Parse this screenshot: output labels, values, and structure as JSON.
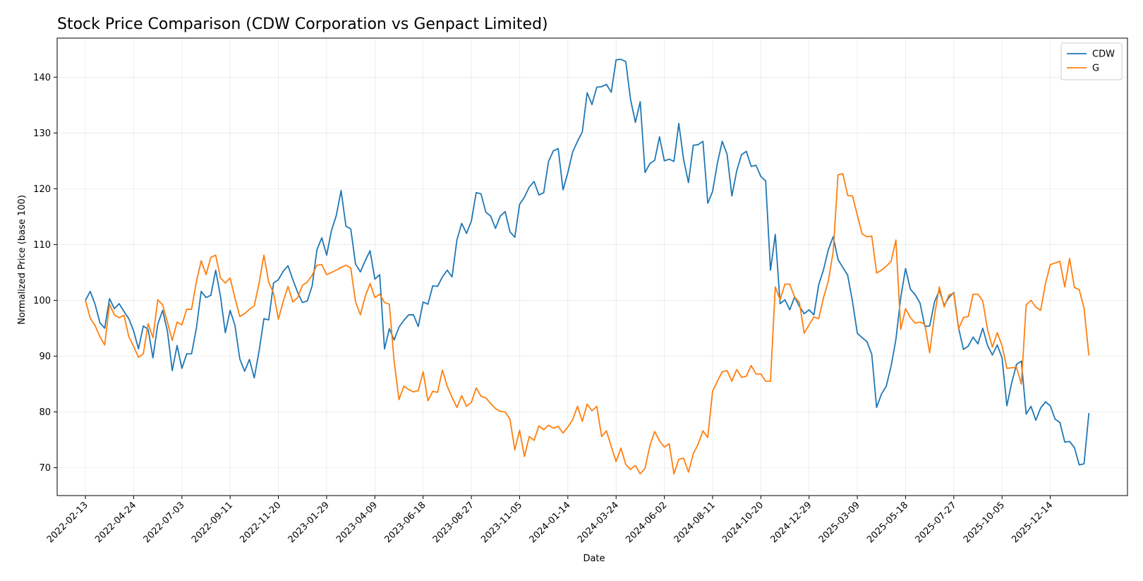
{
  "chart_data": {
    "type": "line",
    "title": "Stock Price Comparison (CDW Corporation vs Genpact Limited)",
    "xlabel": "Date",
    "ylabel": "Normalized Price (base 100)",
    "xlim": [
      "2022-01-03",
      "2026-04-05"
    ],
    "ylim": [
      65,
      147
    ],
    "yticks": [
      70,
      80,
      90,
      100,
      110,
      120,
      130,
      140
    ],
    "xticks": [
      "2022-02-13",
      "2022-04-24",
      "2022-07-03",
      "2022-09-11",
      "2022-11-20",
      "2023-01-29",
      "2023-04-09",
      "2023-06-18",
      "2023-08-27",
      "2023-11-05",
      "2024-01-14",
      "2024-03-24",
      "2024-06-02",
      "2024-08-11",
      "2024-10-20",
      "2024-12-29",
      "2025-03-09",
      "2025-05-18",
      "2025-07-27",
      "2025-10-05",
      "2025-12-14"
    ],
    "grid": true,
    "legend_position": "top-right",
    "x_start": "2022-02-13",
    "x_step_days": 7,
    "series": [
      {
        "name": "CDW",
        "color": "#1f77b4",
        "values": [
          100.0,
          101.6,
          99.3,
          96.0,
          95.0,
          100.3,
          98.5,
          99.4,
          98.0,
          96.7,
          94.5,
          91.3,
          95.4,
          94.8,
          89.7,
          95.7,
          98.2,
          94.5,
          87.4,
          91.9,
          87.8,
          90.4,
          90.4,
          95.0,
          101.6,
          100.5,
          100.9,
          105.4,
          100.7,
          94.2,
          98.2,
          95.5,
          89.5,
          87.3,
          89.4,
          86.1,
          90.9,
          96.7,
          96.5,
          103.1,
          103.7,
          105.2,
          106.2,
          103.7,
          101.4,
          99.6,
          99.9,
          102.6,
          109.1,
          111.2,
          108.1,
          112.5,
          115.2,
          119.7,
          113.3,
          112.8,
          106.5,
          105.1,
          107.1,
          108.9,
          103.8,
          104.6,
          91.3,
          94.9,
          92.9,
          95.2,
          96.4,
          97.4,
          97.4,
          95.3,
          99.7,
          99.3,
          102.6,
          102.5,
          104.2,
          105.4,
          104.2,
          110.8,
          113.8,
          112.0,
          114.2,
          119.3,
          119.1,
          115.8,
          115.1,
          112.9,
          115.1,
          115.9,
          112.3,
          111.3,
          117.2,
          118.5,
          120.3,
          121.3,
          118.9,
          119.3,
          124.9,
          126.8,
          127.2,
          119.8,
          122.9,
          126.6,
          128.5,
          130.2,
          137.2,
          135.1,
          138.2,
          138.3,
          138.7,
          137.3,
          143.1,
          143.2,
          142.8,
          136.0,
          131.9,
          135.6,
          122.9,
          124.5,
          125.1,
          129.3,
          125.0,
          125.3,
          124.9,
          131.7,
          125.2,
          121.1,
          127.8,
          127.9,
          128.5,
          117.4,
          119.5,
          124.6,
          128.5,
          126.2,
          118.7,
          123.2,
          126.1,
          126.7,
          124.0,
          124.2,
          122.2,
          121.4,
          105.4,
          111.8,
          99.4,
          100.1,
          98.3,
          100.6,
          98.9,
          97.6,
          98.3,
          97.4,
          102.8,
          105.5,
          109.1,
          111.4,
          107.3,
          105.9,
          104.5,
          99.8,
          94.1,
          93.3,
          92.6,
          90.3,
          80.8,
          83.2,
          84.6,
          88.2,
          93.0,
          100.5,
          105.7,
          102.0,
          101.0,
          99.5,
          95.3,
          95.4,
          99.7,
          101.8,
          99.1,
          100.5,
          101.4,
          95.0,
          91.2,
          91.8,
          93.4,
          92.2,
          95.0,
          91.9,
          90.2,
          92.0,
          89.7,
          81.1,
          85.2,
          88.5,
          89.1,
          79.6,
          81.0,
          78.5,
          80.7,
          81.8,
          81.1,
          78.7,
          78.1,
          74.6,
          74.7,
          73.6,
          70.5,
          70.7,
          79.8
        ]
      },
      {
        "name": "G",
        "color": "#ff7f0e",
        "values": [
          100.0,
          96.8,
          95.5,
          93.5,
          92.0,
          99.3,
          97.4,
          96.9,
          97.3,
          93.5,
          91.7,
          89.8,
          90.4,
          95.8,
          93.3,
          100.1,
          99.2,
          96.1,
          92.8,
          96.1,
          95.6,
          98.4,
          98.4,
          103.3,
          107.1,
          104.6,
          107.7,
          108.1,
          104.0,
          103.1,
          104.0,
          100.4,
          97.1,
          97.6,
          98.4,
          99.0,
          103.1,
          108.1,
          103.2,
          101.3,
          96.6,
          99.8,
          102.5,
          99.7,
          100.5,
          102.7,
          103.3,
          104.5,
          106.3,
          106.4,
          104.6,
          105.0,
          105.4,
          105.9,
          106.3,
          105.8,
          99.7,
          97.4,
          100.7,
          103.0,
          100.5,
          101.1,
          99.6,
          99.3,
          89.0,
          82.2,
          84.6,
          84.0,
          83.6,
          83.8,
          87.2,
          82.0,
          83.7,
          83.5,
          87.5,
          84.6,
          82.6,
          80.8,
          82.9,
          81.0,
          81.7,
          84.3,
          82.8,
          82.5,
          81.5,
          80.6,
          80.1,
          80.0,
          78.7,
          73.2,
          76.7,
          72.0,
          75.6,
          74.9,
          77.5,
          76.8,
          77.6,
          77.1,
          77.4,
          76.2,
          77.3,
          78.6,
          81.0,
          78.3,
          81.4,
          80.2,
          81.0,
          75.6,
          76.6,
          73.8,
          71.1,
          73.5,
          70.6,
          69.7,
          70.4,
          68.9,
          69.9,
          73.9,
          76.5,
          74.8,
          73.7,
          74.3,
          68.9,
          71.5,
          71.7,
          69.2,
          72.5,
          74.2,
          76.6,
          75.4,
          83.7,
          85.5,
          87.2,
          87.4,
          85.5,
          87.6,
          86.2,
          86.4,
          88.3,
          86.8,
          86.8,
          85.5,
          85.5,
          102.4,
          100.1,
          102.9,
          102.9,
          100.6,
          99.6,
          94.1,
          95.6,
          97.0,
          96.7,
          100.5,
          103.5,
          108.7,
          122.5,
          122.7,
          118.8,
          118.7,
          115.3,
          111.9,
          111.4,
          111.5,
          104.9,
          105.4,
          106.1,
          107.0,
          110.8,
          94.8,
          98.5,
          96.9,
          95.9,
          96.1,
          95.7,
          90.6,
          97.3,
          102.4,
          98.8,
          101.0,
          101.2,
          94.9,
          96.9,
          97.1,
          101.1,
          101.1,
          99.9,
          94.7,
          91.6,
          94.2,
          91.9,
          87.8,
          87.9,
          88.0,
          85.0,
          99.2,
          100.0,
          98.8,
          98.2,
          103.0,
          106.4,
          106.7,
          107.0,
          102.4,
          107.5,
          102.3,
          101.9,
          98.6,
          90.1
        ]
      }
    ]
  }
}
